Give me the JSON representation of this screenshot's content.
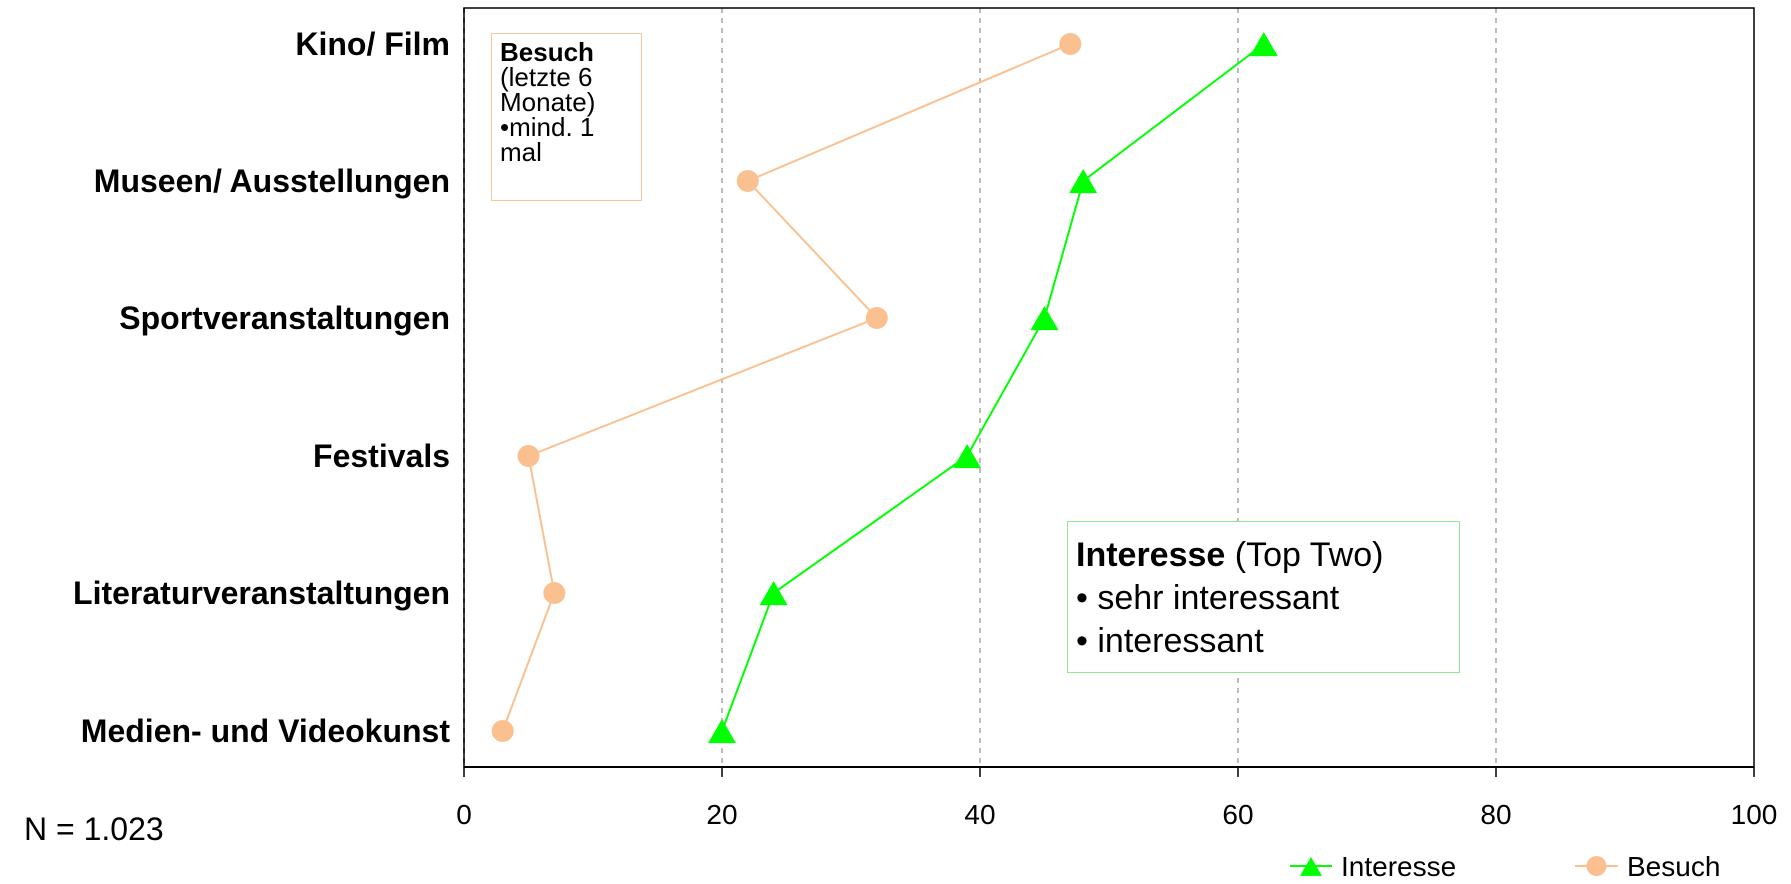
{
  "chart_data": {
    "type": "line",
    "orientation": "horizontal",
    "categories": [
      "Kino/ Film",
      "Museen/ Ausstellungen",
      "Sportveranstaltungen",
      "Festivals",
      "Literaturveranstaltungen",
      "Medien- und Videokunst"
    ],
    "xlim": [
      0,
      100
    ],
    "xticks": [
      0,
      20,
      40,
      60,
      80,
      100
    ],
    "grid": "vertical dashed",
    "series": [
      {
        "name": "Interesse",
        "color": "#00ff00",
        "marker": "triangle",
        "values": [
          62,
          48,
          45,
          39,
          24,
          20
        ]
      },
      {
        "name": "Besuch",
        "color": "#fac090",
        "marker": "circle",
        "values": [
          47,
          22,
          32,
          5,
          7,
          3
        ]
      }
    ],
    "legend_position": "bottom-right"
  },
  "annotations": {
    "besuch_title": "Besuch",
    "besuch_line1": "(letzte 6",
    "besuch_line2": "Monate)",
    "besuch_line3": "•mind. 1",
    "besuch_line4": "mal",
    "interesse_title": "Interesse",
    "interesse_suffix": " (Top Two)",
    "interesse_item1": "• sehr interessant",
    "interesse_item2": "• interessant"
  },
  "footnote": "N = 1.023"
}
